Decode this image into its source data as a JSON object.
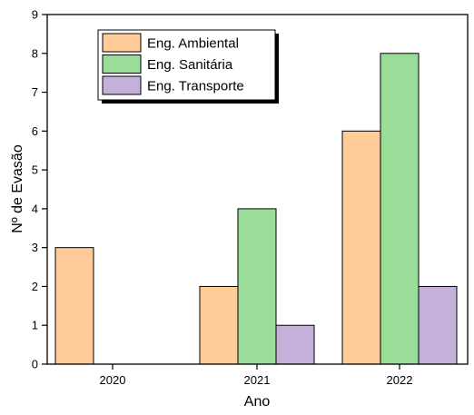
{
  "chart_data": {
    "type": "bar",
    "xlabel": "Ano",
    "ylabel": "Nº de Evasão",
    "ylim": [
      0,
      9
    ],
    "yticks": [
      0,
      1,
      2,
      3,
      4,
      5,
      6,
      7,
      8,
      9
    ],
    "categories": [
      "2020",
      "2021",
      "2022"
    ],
    "series": [
      {
        "name": "Eng. Ambiental",
        "values": [
          3,
          2,
          6
        ],
        "color": "#FFCC99"
      },
      {
        "name": "Eng. Sanitária",
        "values": [
          0,
          4,
          8
        ],
        "color": "#99DD99"
      },
      {
        "name": "Eng. Transporte",
        "values": [
          0,
          1,
          2
        ],
        "color": "#C4B0D8"
      }
    ],
    "legend_position": "top-left",
    "grid": false
  }
}
